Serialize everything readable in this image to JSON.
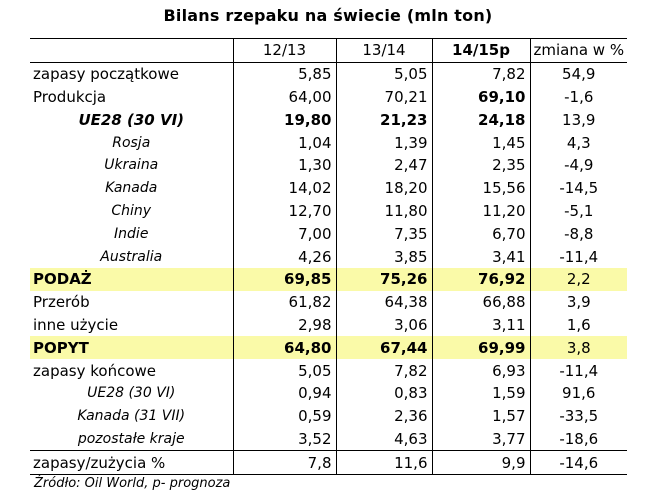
{
  "title": "Bilans rzepaku na świecie  (mln ton)",
  "headers": [
    "",
    "12/13",
    "13/14",
    "14/15p",
    "zmiana w %"
  ],
  "rows": [
    {
      "label": "zapasy początkowe",
      "v": [
        "5,85",
        "5,05",
        "7,82"
      ],
      "chg": "54,9",
      "style": "main"
    },
    {
      "label": "Produkcja",
      "v": [
        "64,00",
        "70,21",
        "69,10"
      ],
      "chg": "-1,6",
      "style": "main",
      "bold3": true
    },
    {
      "label": "UE28 (30 VI)",
      "v": [
        "19,80",
        "21,23",
        "24,18"
      ],
      "chg": "13,9",
      "style": "eu"
    },
    {
      "label": "Rosja",
      "v": [
        "1,04",
        "1,39",
        "1,45"
      ],
      "chg": "4,3",
      "style": "sub"
    },
    {
      "label": "Ukraina",
      "v": [
        "1,30",
        "2,47",
        "2,35"
      ],
      "chg": "-4,9",
      "style": "sub"
    },
    {
      "label": "Kanada",
      "v": [
        "14,02",
        "18,20",
        "15,56"
      ],
      "chg": "-14,5",
      "style": "sub"
    },
    {
      "label": "Chiny",
      "v": [
        "12,70",
        "11,80",
        "11,20"
      ],
      "chg": "-5,1",
      "style": "sub"
    },
    {
      "label": "Indie",
      "v": [
        "7,00",
        "7,35",
        "6,70"
      ],
      "chg": "-8,8",
      "style": "sub"
    },
    {
      "label": "Australia",
      "v": [
        "4,26",
        "3,85",
        "3,41"
      ],
      "chg": "-11,4",
      "style": "sub"
    },
    {
      "label": "PODAŻ",
      "v": [
        "69,85",
        "75,26",
        "76,92"
      ],
      "chg": "2,2",
      "style": "hl"
    },
    {
      "label": "Przerób",
      "v": [
        "61,82",
        "64,38",
        "66,88"
      ],
      "chg": "3,9",
      "style": "main"
    },
    {
      "label": "inne użycie",
      "v": [
        "2,98",
        "3,06",
        "3,11"
      ],
      "chg": "1,6",
      "style": "main"
    },
    {
      "label": "POPYT",
      "v": [
        "64,80",
        "67,44",
        "69,99"
      ],
      "chg": "3,8",
      "style": "hl"
    },
    {
      "label": "zapasy końcowe",
      "v": [
        "5,05",
        "7,82",
        "6,93"
      ],
      "chg": "-11,4",
      "style": "main"
    },
    {
      "label": "UE28 (30 VI)",
      "v": [
        "0,94",
        "0,83",
        "1,59"
      ],
      "chg": "91,6",
      "style": "sub"
    },
    {
      "label": "Kanada (31 VII)",
      "v": [
        "0,59",
        "2,36",
        "1,57"
      ],
      "chg": "-33,5",
      "style": "sub"
    },
    {
      "label": "pozostałe kraje",
      "v": [
        "3,52",
        "4,63",
        "3,77"
      ],
      "chg": "-18,6",
      "style": "sub"
    },
    {
      "label": "zapasy/zużycia %",
      "v": [
        "7,8",
        "11,6",
        "9,9"
      ],
      "chg": "-14,6",
      "style": "sep"
    }
  ],
  "source": "Źródło: Oil World, p- prognoza"
}
